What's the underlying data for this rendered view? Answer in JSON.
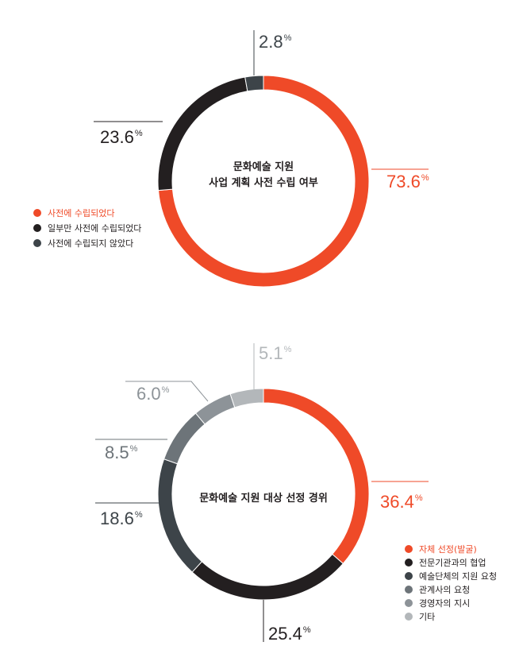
{
  "chart_data": [
    {
      "type": "pie",
      "variant": "donut",
      "title": "문화예술 지원\n사업 계획 사전 수립 여부",
      "unit": "%",
      "slices": [
        {
          "label": "사전에 수립되었다",
          "value": 73.6,
          "value_label": "73.6",
          "color": "#ef4a28"
        },
        {
          "label": "일부만 사전에 수립되었다",
          "value": 23.6,
          "value_label": "23.6",
          "color": "#231f20"
        },
        {
          "label": "사전에 수립되지 않았다",
          "value": 2.8,
          "value_label": "2.8",
          "color": "#3d4449"
        }
      ],
      "legend_position": "left"
    },
    {
      "type": "pie",
      "variant": "donut",
      "title": "문화예술 지원 대상 선정 경위",
      "unit": "%",
      "slices": [
        {
          "label": "자체 선정(발굴)",
          "value": 36.4,
          "value_label": "36.4",
          "color": "#ef4a28"
        },
        {
          "label": "전문기관과의 협업",
          "value": 25.4,
          "value_label": "25.4",
          "color": "#231f20"
        },
        {
          "label": "예술단체의 지원 요청",
          "value": 18.6,
          "value_label": "18.6",
          "color": "#3d4449"
        },
        {
          "label": "관계사의 요청",
          "value": 8.5,
          "value_label": "8.5",
          "color": "#6d7479"
        },
        {
          "label": "경영자의 지시",
          "value": 6.0,
          "value_label": "6.0",
          "color": "#8d9398"
        },
        {
          "label": "기타",
          "value": 5.1,
          "value_label": "5.1",
          "color": "#b3b7ba"
        }
      ],
      "legend_position": "bottom-right"
    }
  ]
}
